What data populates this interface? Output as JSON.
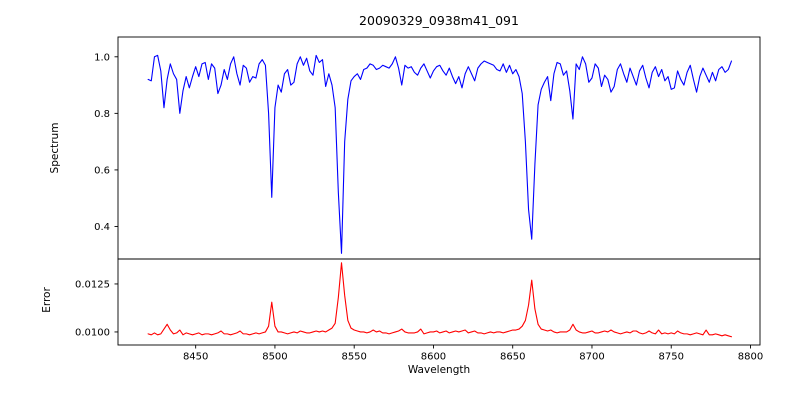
{
  "chart_data": {
    "type": "line",
    "title": "20090329_0938m41_091",
    "xlabel": "Wavelength",
    "grid": false,
    "legend": "none",
    "xlim": [
      8401,
      8806
    ],
    "xticks": [
      8450,
      8500,
      8550,
      8600,
      8650,
      8700,
      8750,
      8800
    ],
    "xtick_labels": [
      "8450",
      "8500",
      "8550",
      "8600",
      "8650",
      "8700",
      "8750",
      "8800"
    ],
    "x_start": 8420,
    "x_step": 2,
    "n_points": 185,
    "subplots": [
      {
        "name": "spectrum",
        "ylabel": "Spectrum",
        "color": "#0000ff",
        "ylim": [
          0.285,
          1.07
        ],
        "yticks": [
          1.0,
          0.8,
          0.6,
          0.4
        ],
        "ytick_labels": [
          "1.0",
          "0.8",
          "0.6",
          "0.4"
        ],
        "features": "Ca II triplet absorption lines at 8498, 8542, 8662 with depths 0.50, 0.31, 0.36; deep narrow lines at 8430, 8440 (0.80) and 8688 (0.78); noisy continuum near 1.0",
        "y": [
          0.92,
          0.915,
          1.0,
          1.005,
          0.95,
          0.82,
          0.92,
          0.975,
          0.94,
          0.92,
          0.8,
          0.88,
          0.93,
          0.89,
          0.93,
          0.965,
          0.93,
          0.975,
          0.98,
          0.92,
          0.975,
          0.96,
          0.87,
          0.9,
          0.955,
          0.92,
          0.975,
          1.0,
          0.94,
          0.9,
          0.97,
          0.96,
          0.91,
          0.93,
          0.925,
          0.975,
          0.99,
          0.97,
          0.8,
          0.503,
          0.82,
          0.9,
          0.875,
          0.94,
          0.955,
          0.9,
          0.91,
          0.975,
          1.0,
          0.97,
          0.995,
          0.95,
          0.935,
          1.005,
          0.98,
          0.99,
          0.895,
          0.94,
          0.9,
          0.82,
          0.52,
          0.305,
          0.7,
          0.85,
          0.915,
          0.93,
          0.94,
          0.92,
          0.955,
          0.96,
          0.975,
          0.97,
          0.955,
          0.96,
          0.97,
          0.965,
          0.96,
          0.975,
          1.0,
          0.96,
          0.9,
          0.97,
          0.96,
          0.965,
          0.945,
          0.935,
          0.96,
          0.975,
          0.95,
          0.925,
          0.95,
          0.965,
          0.97,
          0.95,
          0.935,
          0.96,
          0.93,
          0.905,
          0.93,
          0.89,
          0.94,
          0.965,
          0.94,
          0.915,
          0.96,
          0.975,
          0.985,
          0.98,
          0.975,
          0.97,
          0.955,
          0.95,
          0.975,
          0.945,
          0.97,
          0.94,
          0.955,
          0.93,
          0.87,
          0.7,
          0.46,
          0.355,
          0.62,
          0.83,
          0.885,
          0.91,
          0.93,
          0.845,
          0.94,
          0.98,
          0.975,
          0.935,
          0.95,
          0.88,
          0.78,
          0.975,
          0.955,
          1.0,
          0.975,
          0.91,
          0.925,
          0.975,
          0.96,
          0.895,
          0.935,
          0.92,
          0.875,
          0.895,
          0.955,
          0.975,
          0.94,
          0.91,
          0.96,
          0.93,
          0.9,
          0.95,
          0.97,
          0.925,
          0.89,
          0.945,
          0.965,
          0.93,
          0.955,
          0.915,
          0.93,
          0.885,
          0.89,
          0.95,
          0.92,
          0.9,
          0.945,
          0.97,
          0.92,
          0.875,
          0.93,
          0.96,
          0.935,
          0.91,
          0.945,
          0.915,
          0.955,
          0.965,
          0.945,
          0.955,
          0.985
        ]
      },
      {
        "name": "error",
        "ylabel": "Error",
        "color": "#ff0000",
        "ylim": [
          0.00932,
          0.0138
        ],
        "yticks": [
          0.0125,
          0.01
        ],
        "ytick_labels": [
          "0.0125",
          "0.0100"
        ],
        "features": "baseline near 0.0099 with peaks at 8498 (0.0116), 8542 (0.0136), 8662 (0.0127), small bumps at 8432 and 8688",
        "y": [
          0.0099,
          0.00985,
          0.00995,
          0.00985,
          0.0099,
          0.01015,
          0.0104,
          0.0101,
          0.0099,
          0.00995,
          0.0101,
          0.00985,
          0.00995,
          0.0099,
          0.00985,
          0.0099,
          0.00995,
          0.00985,
          0.0099,
          0.0099,
          0.00985,
          0.0099,
          0.00995,
          0.01005,
          0.0099,
          0.0099,
          0.00985,
          0.0099,
          0.00995,
          0.01005,
          0.0099,
          0.0099,
          0.00985,
          0.0099,
          0.00995,
          0.0099,
          0.00995,
          0.01,
          0.0103,
          0.01155,
          0.0103,
          0.01,
          0.01,
          0.00995,
          0.0099,
          0.00995,
          0.01,
          0.00995,
          0.01005,
          0.01,
          0.00995,
          0.00995,
          0.01,
          0.01005,
          0.01,
          0.01005,
          0.01,
          0.0101,
          0.0102,
          0.01045,
          0.0118,
          0.0136,
          0.0119,
          0.0106,
          0.0102,
          0.0101,
          0.01005,
          0.01,
          0.01,
          0.00995,
          0.01,
          0.0101,
          0.01,
          0.01005,
          0.00995,
          0.00995,
          0.0099,
          0.00995,
          0.01,
          0.01005,
          0.01015,
          0.01,
          0.00995,
          0.00995,
          0.00995,
          0.01,
          0.01015,
          0.0099,
          0.00995,
          0.01,
          0.01,
          0.01005,
          0.00995,
          0.01,
          0.01005,
          0.00995,
          0.01,
          0.01005,
          0.01,
          0.01005,
          0.0101,
          0.00995,
          0.01,
          0.01005,
          0.00995,
          0.00995,
          0.0099,
          0.00995,
          0.01,
          0.00995,
          0.01,
          0.01,
          0.00995,
          0.01,
          0.01005,
          0.0101,
          0.0101,
          0.01015,
          0.0103,
          0.0106,
          0.0114,
          0.0127,
          0.0112,
          0.0104,
          0.01015,
          0.0101,
          0.01005,
          0.0101,
          0.01,
          0.00995,
          0.01,
          0.01,
          0.01,
          0.0101,
          0.0104,
          0.0101,
          0.01,
          0.00995,
          0.00995,
          0.01,
          0.01005,
          0.00995,
          0.00995,
          0.01,
          0.01005,
          0.01,
          0.0101,
          0.01,
          0.00995,
          0.0099,
          0.00995,
          0.01,
          0.00995,
          0.01005,
          0.01005,
          0.00995,
          0.0099,
          0.00995,
          0.01005,
          0.00995,
          0.0099,
          0.0101,
          0.0099,
          0.00995,
          0.0099,
          0.00995,
          0.0099,
          0.01005,
          0.00995,
          0.0099,
          0.0099,
          0.00985,
          0.0099,
          0.00995,
          0.0099,
          0.00985,
          0.0101,
          0.00985,
          0.00985,
          0.0099,
          0.00985,
          0.0098,
          0.00985,
          0.0098,
          0.00975
        ]
      }
    ],
    "colors": {
      "spine": "#000000",
      "background": "#ffffff",
      "text": "#000000"
    }
  }
}
